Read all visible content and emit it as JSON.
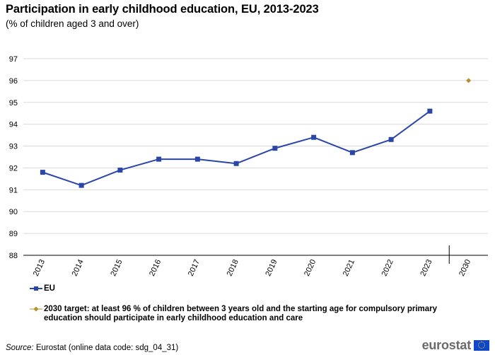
{
  "title": "Participation in early childhood education, EU, 2013-2023",
  "subtitle": "(% of children aged 3 and over)",
  "chart_data": {
    "type": "line",
    "categories": [
      "2013",
      "2014",
      "2015",
      "2016",
      "2017",
      "2018",
      "2019",
      "2020",
      "2021",
      "2022",
      "2023",
      "2030"
    ],
    "series": [
      {
        "name": "EU",
        "x": [
          "2013",
          "2014",
          "2015",
          "2016",
          "2017",
          "2018",
          "2019",
          "2020",
          "2021",
          "2022",
          "2023"
        ],
        "values": [
          91.8,
          91.2,
          91.9,
          92.4,
          92.4,
          92.2,
          92.9,
          93.4,
          92.7,
          93.3,
          94.6
        ],
        "color": "#2a46a8",
        "marker": "square"
      },
      {
        "name": "2030 target: at least 96 % of children between 3 years old and the starting age for compulsory primary education should participate in early childhood education and care",
        "x": [
          "2030"
        ],
        "values": [
          96
        ],
        "color": "#b8902a",
        "marker": "diamond"
      }
    ],
    "yticks": [
      88,
      89,
      90,
      91,
      92,
      93,
      94,
      95,
      96,
      97
    ],
    "ylim": [
      88,
      97
    ],
    "xlabel": "",
    "ylabel": "",
    "grid": true,
    "axis_break": "between 2023 and 2030",
    "legend_position": "bottom"
  },
  "legend": {
    "eu_label": "EU",
    "target_label": "2030 target: at least 96 % of children between 3 years old and the starting age for compulsory primary education should participate in early childhood education and care"
  },
  "source": {
    "prefix": "Source:",
    "text": " Eurostat (online data code: sdg_04_31)"
  },
  "logo": {
    "text": "eurostat"
  },
  "colors": {
    "eu_line": "#2a46a8",
    "target_marker": "#b8902a",
    "gridline": "#d9d9d9",
    "axis": "#000000",
    "logo_text": "#6b6b6b",
    "eu_flag": "#0e47cb",
    "eu_flag_stars": "#ffd617"
  }
}
